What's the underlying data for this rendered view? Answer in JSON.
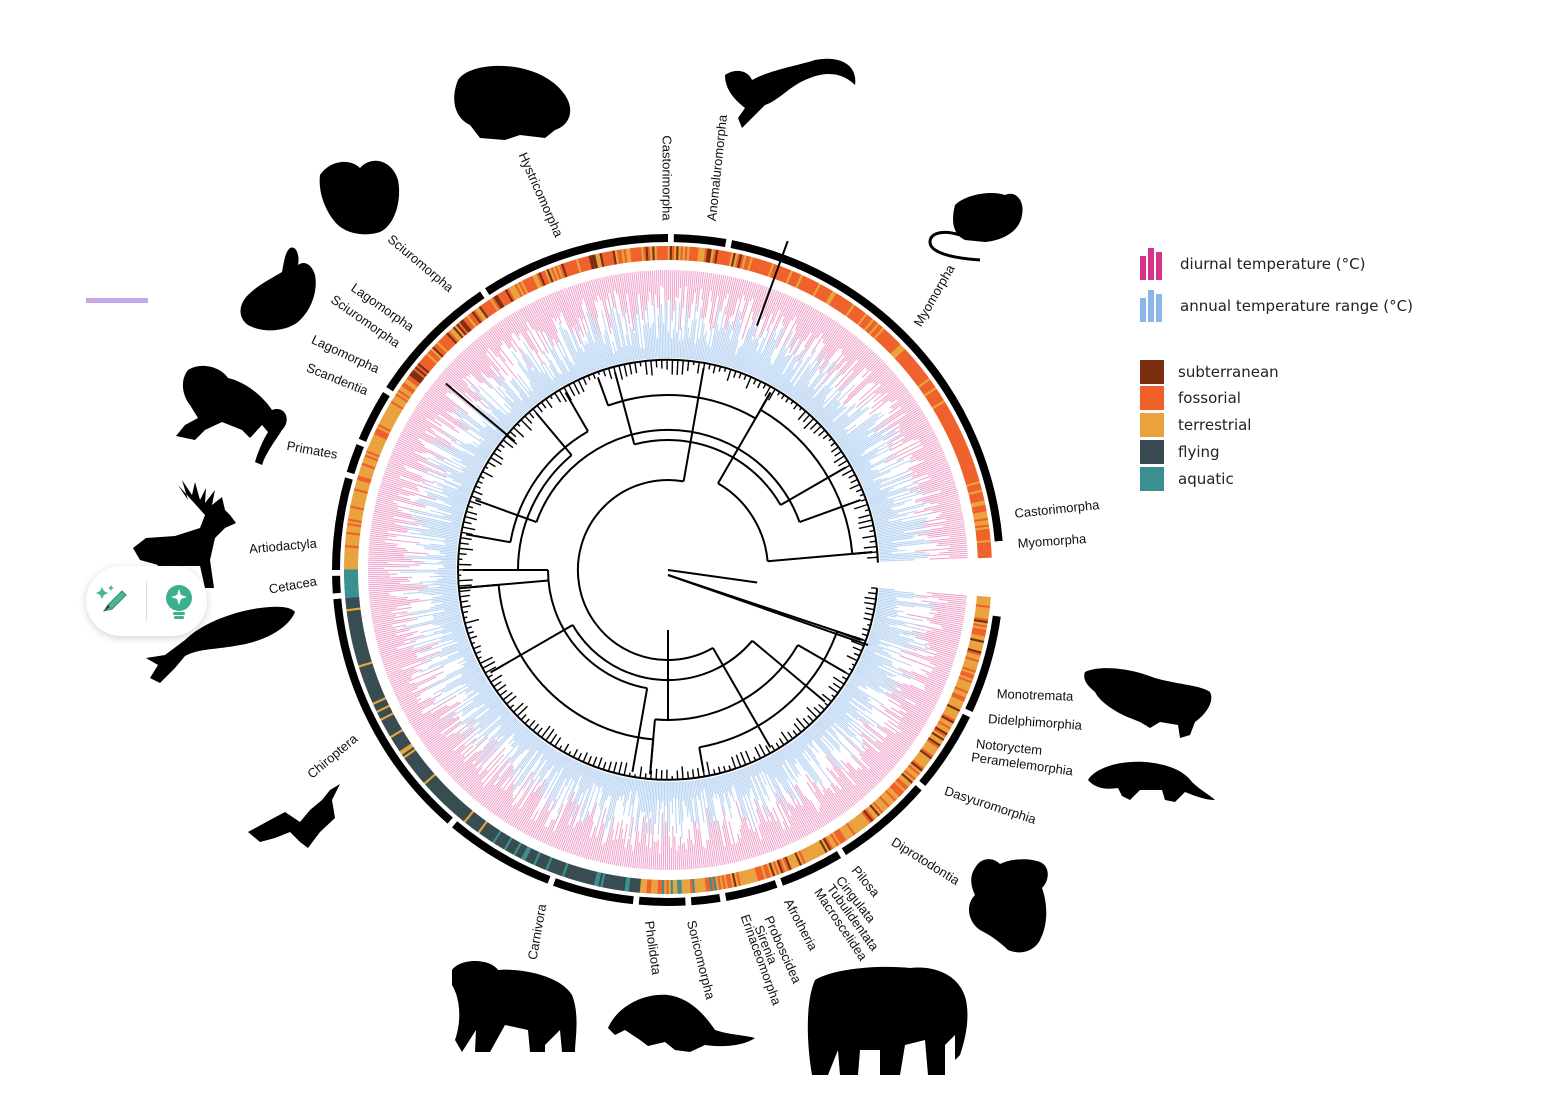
{
  "clade_labels": {
    "hystricomorpha": "Hystricomorpha",
    "castorimorpha_top": "Castorimorpha",
    "anomaluromorpha": "Anomaluromorpha",
    "myomorpha_top": "Myomorpha",
    "sciuromorpha_outer": "Sciuromorpha",
    "lagomorpha_a": "Lagomorpha",
    "sciuromorpha_b": "Sciuromorpha",
    "lagomorpha_b": "Lagomorpha",
    "scandentia": "Scandentia",
    "primates": "Primates",
    "artiodactyla": "Artiodactyla",
    "cetacea": "Cetacea",
    "chiroptera": "Chiroptera",
    "castorimorpha_right": "Castorimorpha",
    "myomorpha_right": "Myomorpha",
    "monotremata": "Monotremata",
    "didelphimorphia": "Didelphimorphia",
    "notoryctem": "Notoryctem",
    "peramelemorphia": "Peramelemorphia",
    "dasyuromorphia": "Dasyuromorphia",
    "diprotodontia": "Diprotodontia",
    "pilosa": "Pilosa",
    "cingulata": "Cingulata",
    "tubulidentata": "Tubulidentata",
    "macroscelidea": "Macroscelidea",
    "afrotheria": "Afrotheria",
    "proboscidea": "Proboscidea",
    "sirenia": "Sirenia",
    "erinaceomorpha": "Erinaceomorpha",
    "soricomorpha": "Soricomorpha",
    "pholidota": "Pholidota",
    "carnivora": "Carnivora"
  },
  "legend": {
    "diurnal": "diurnal temperature (°C)",
    "annual": "annual temperature range (°C)",
    "subterranean": "subterranean",
    "fossorial": "fossorial",
    "terrestrial": "terrestrial",
    "flying": "flying",
    "aquatic": "aquatic"
  },
  "colors": {
    "diurnal": "#d6348a",
    "annual": "#8ab6ea",
    "subterranean": "#7b2e10",
    "fossorial": "#f0602a",
    "terrestrial": "#e8a33e",
    "flying": "#374c50",
    "aquatic": "#3a8f8f",
    "pink_bars": "#f0a6cc",
    "blue_bars": "#bcd6f3"
  },
  "icons": [
    "porcupine-icon",
    "jerboa-icon",
    "mouse-icon",
    "squirrel-icon",
    "rabbit-icon",
    "monkey-icon",
    "deer-icon",
    "whale-icon",
    "bat-icon",
    "bear-icon",
    "pangolin-icon",
    "elephant-icon",
    "koala-icon",
    "opossum-icon",
    "platypus-icon",
    "edit-icon",
    "lightbulb-icon"
  ]
}
